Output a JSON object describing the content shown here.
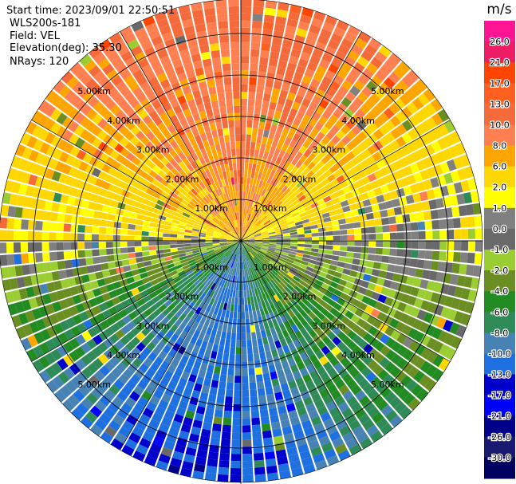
{
  "header": {
    "start_time": "Start time: 2023/09/01 22:50:51",
    "instrument": "WLS200s-181",
    "field": "Field: VEL",
    "elevation": "Elevation(deg): 35.30",
    "nrays": "NRays: 120"
  },
  "colorbar": {
    "unit": "m/s",
    "tick_labels": [
      "26.0",
      "21.0",
      "17.0",
      "13.0",
      "10.0",
      "8.0",
      "6.0",
      "2.0",
      "1.0",
      "0.0",
      "-1.0",
      "-2.0",
      "-4.0",
      "-6.0",
      "-8.0",
      "-10.0",
      "-13.0",
      "-17.0",
      "-21.0",
      "-26.0",
      "-30.0"
    ],
    "colors": [
      "#ff1493",
      "#ee1c64",
      "#ff4500",
      "#ff5f1f",
      "#f56a3a",
      "#ff7f50",
      "#ffa500",
      "#ffd700",
      "#ffff00",
      "#808080",
      "#696969",
      "#9acd32",
      "#6b8e23",
      "#228b22",
      "#2e8b57",
      "#4682b4",
      "#1e6fe0",
      "#0000cd",
      "#0000ff",
      "#00008b",
      "#191970",
      "#000060"
    ]
  },
  "chart_data": {
    "type": "heatmap",
    "projection": "polar PPI",
    "field": "VEL",
    "units": "m/s",
    "elevation_deg": 35.3,
    "nrays": 120,
    "range_ring_labels": [
      "1.00km",
      "2.00km",
      "3.00km",
      "4.00km",
      "5.00km"
    ],
    "range_rings_km": [
      1,
      2,
      3,
      4,
      5
    ],
    "max_range_km": 5.8,
    "value_range": [
      -30.0,
      26.0
    ],
    "colorbar_levels": [
      26.0,
      21.0,
      17.0,
      13.0,
      10.0,
      8.0,
      6.0,
      2.0,
      1.0,
      0.0,
      -1.0,
      -2.0,
      -4.0,
      -6.0,
      -8.0,
      -10.0,
      -13.0,
      -17.0,
      -21.0,
      -26.0,
      -30.0
    ],
    "approx_velocity_by_bearing": {
      "bearings_deg": [
        0,
        30,
        60,
        90,
        120,
        150,
        180,
        210,
        240,
        270,
        300,
        330
      ],
      "velocity_ms": [
        10,
        9,
        4,
        0,
        -3,
        -7,
        -12,
        -11,
        -6,
        1,
        6,
        9
      ]
    }
  }
}
